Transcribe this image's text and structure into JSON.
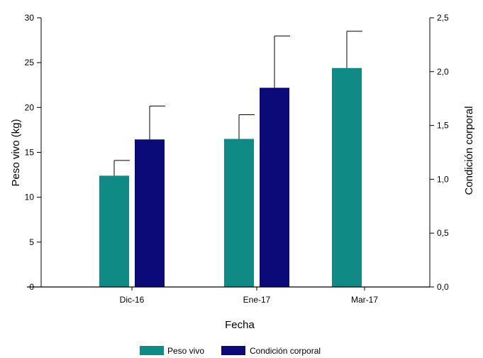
{
  "chart_data": {
    "type": "bar",
    "xlabel": "Fecha",
    "categories": [
      "Dic-16",
      "Ene-17",
      "Mar-17"
    ],
    "y_left": {
      "label": "Peso vivo (kg)",
      "range": [
        0,
        30
      ],
      "ticks": [
        "0",
        "5",
        "10",
        "15",
        "20",
        "25",
        "30"
      ]
    },
    "y_right": {
      "label": "Condición corporal",
      "range": [
        0,
        2.5
      ],
      "ticks": [
        "0,0",
        "0,5",
        "1,0",
        "1,5",
        "2,0",
        "2,5"
      ]
    },
    "series": [
      {
        "name": "Peso vivo",
        "axis": "left",
        "color": "#0f8a84",
        "values": [
          12.4,
          16.5,
          24.4
        ],
        "errors": [
          1.7,
          2.7,
          4.1
        ]
      },
      {
        "name": "Condición corporal",
        "axis": "right",
        "color": "#0b0a78",
        "values": [
          1.37,
          1.85,
          null
        ],
        "errors": [
          0.31,
          0.48,
          null
        ]
      }
    ],
    "legend_position": "bottom",
    "grid": false
  }
}
